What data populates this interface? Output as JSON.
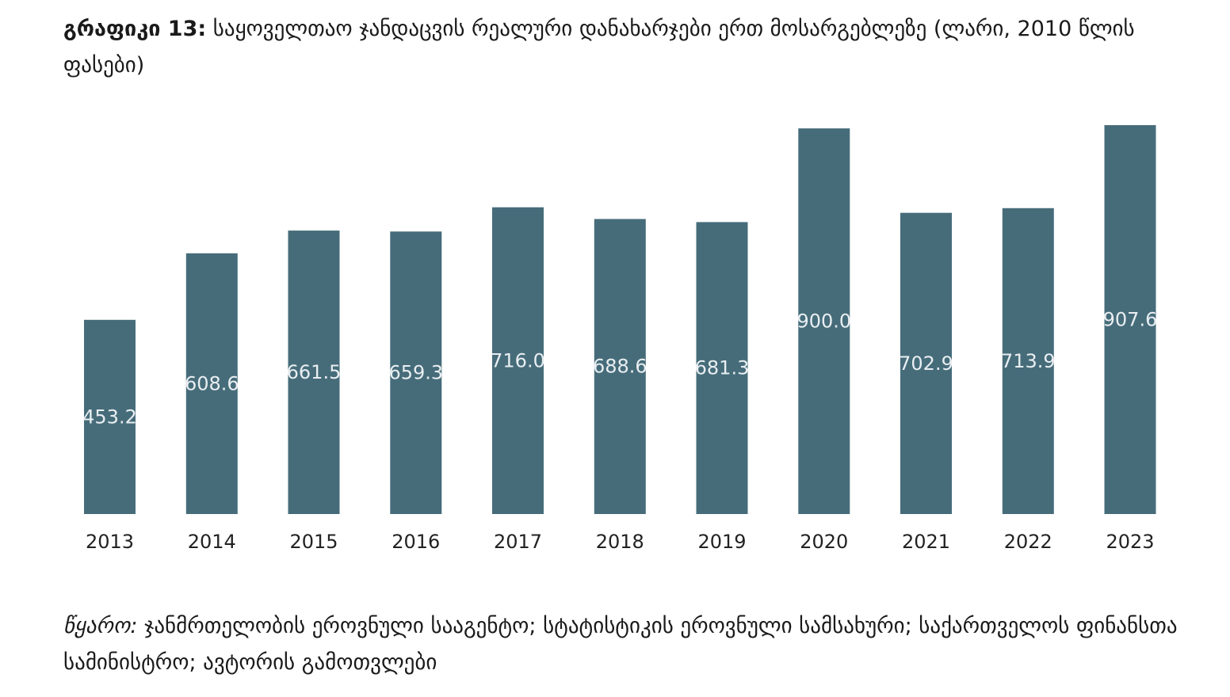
{
  "title": {
    "prefix": "გრაფიკი 13:",
    "text": "საყოველთაო ჯანდაცვის რეალური დანახარჯები ერთ მოსარგებლეზე (ლარი, 2010 წლის ფასები)"
  },
  "source": {
    "prefix": "წყარო:",
    "text": "ჯანმრთელობის ეროვნული სააგენტო; სტატისტიკის ეროვნული სამსახური; საქართველოს ფინანსთა სამინისტრო; ავტორის გამოთვლები"
  },
  "chart_data": {
    "type": "bar",
    "categories": [
      "2013",
      "2014",
      "2015",
      "2016",
      "2017",
      "2018",
      "2019",
      "2020",
      "2021",
      "2022",
      "2023"
    ],
    "values": [
      453.2,
      608.6,
      661.5,
      659.3,
      716.0,
      688.6,
      681.3,
      900.0,
      702.9,
      713.9,
      907.6
    ],
    "value_labels": [
      "453.2",
      "608.6",
      "661.5",
      "659.3",
      "716.0",
      "688.6",
      "681.3",
      "900.0",
      "702.9",
      "713.9",
      "907.6"
    ],
    "ylim": [
      0,
      907.6
    ],
    "grid": false,
    "legend": "none",
    "colors": {
      "bar": "#466c7a",
      "label": "#e9eef1"
    }
  }
}
